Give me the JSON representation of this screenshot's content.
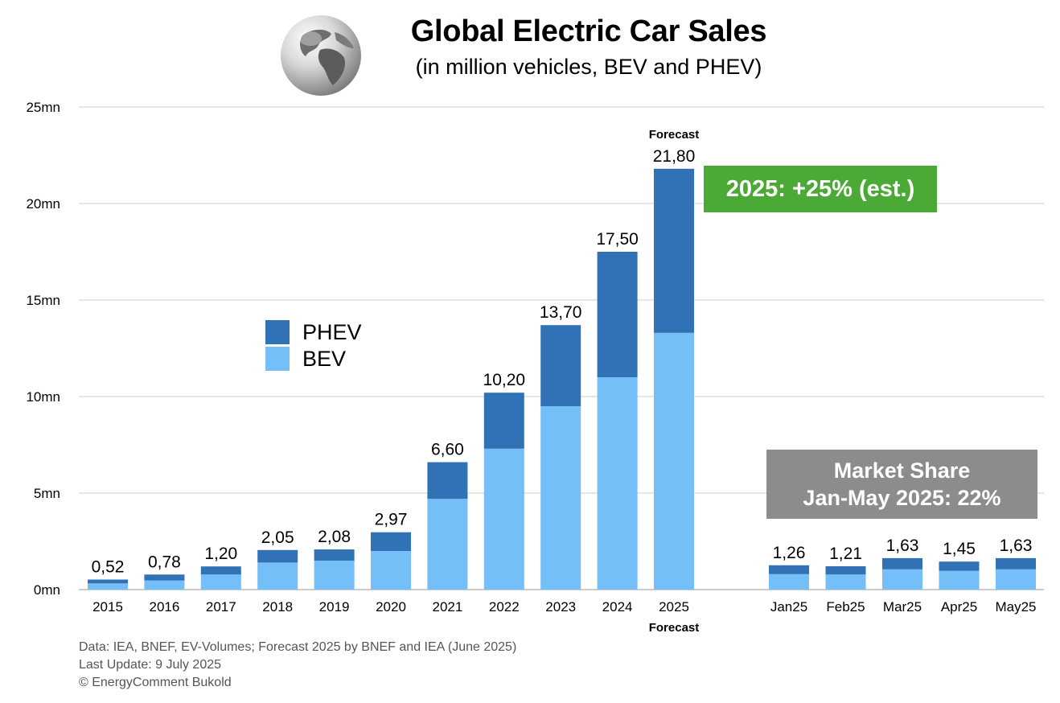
{
  "header": {
    "title": "Global Electric Car Sales",
    "subtitle": "(in million vehicles, BEV and PHEV)"
  },
  "colors": {
    "bev": "#74bff7",
    "phev": "#3072b5",
    "grid": "#cccccc",
    "badge_green": "#4aaa35",
    "box_grey": "#8c8c8c"
  },
  "legend": {
    "phev": "PHEV",
    "bev": "BEV"
  },
  "growth_badge": "2025: +25% (est.)",
  "market_share": {
    "line1": "Market Share",
    "line2": "Jan-May 2025: 22%"
  },
  "forecast_label": "Forecast",
  "footer": {
    "line1": "Data: IEA, BNEF, EV-Volumes; Forecast 2025 by BNEF and IEA (June 2025)",
    "line2": "Last Update: 9 July 2025",
    "line3": "© EnergyComment Bukold"
  },
  "chart_data": {
    "type": "bar",
    "stacked": true,
    "title": "Global Electric Car Sales",
    "subtitle": "(in million vehicles, BEV and PHEV)",
    "y_ticks": [
      "0mn",
      "5mn",
      "10mn",
      "15mn",
      "20mn",
      "25mn"
    ],
    "ylim": [
      0,
      25
    ],
    "grid": true,
    "legend_position": "left",
    "annual": {
      "categories": [
        "2015",
        "2016",
        "2017",
        "2018",
        "2019",
        "2020",
        "2021",
        "2022",
        "2023",
        "2024",
        "2025"
      ],
      "totals_labels": [
        "0,52",
        "0,78",
        "1,20",
        "2,05",
        "2,08",
        "2,97",
        "6,60",
        "10,20",
        "13,70",
        "17,50",
        "21,80"
      ],
      "series": [
        {
          "name": "BEV",
          "values": [
            0.32,
            0.47,
            0.78,
            1.4,
            1.5,
            2.0,
            4.7,
            7.3,
            9.5,
            11.0,
            13.3
          ]
        },
        {
          "name": "PHEV",
          "values": [
            0.2,
            0.31,
            0.42,
            0.65,
            0.58,
            0.97,
            1.9,
            2.9,
            4.2,
            6.5,
            8.5
          ]
        }
      ]
    },
    "monthly": {
      "categories": [
        "Jan25",
        "Feb25",
        "Mar25",
        "Apr25",
        "May25"
      ],
      "totals_labels": [
        "1,26",
        "1,21",
        "1,63",
        "1,45",
        "1,63"
      ],
      "series": [
        {
          "name": "BEV",
          "values": [
            0.8,
            0.78,
            1.05,
            0.97,
            1.05
          ]
        },
        {
          "name": "PHEV",
          "values": [
            0.46,
            0.43,
            0.58,
            0.48,
            0.58
          ]
        }
      ]
    }
  }
}
